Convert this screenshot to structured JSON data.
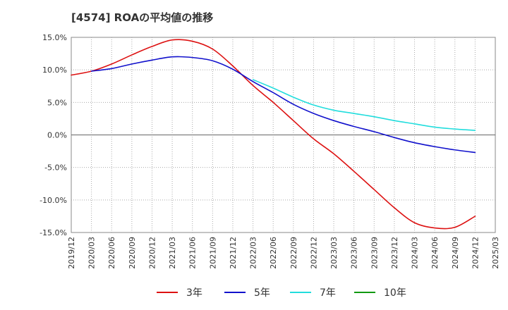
{
  "chart_data": {
    "type": "line",
    "title": "[4574]  ROAの平均値の推移",
    "xlabel": "",
    "ylabel": "",
    "ylim": [
      -15,
      15
    ],
    "ytick_values": [
      -15,
      -10,
      -5,
      0,
      5,
      10,
      15
    ],
    "ytick_labels": [
      "-15.0%",
      "-10.0%",
      "-5.0%",
      "0.0%",
      "5.0%",
      "10.0%",
      "15.0%"
    ],
    "x_categories": [
      "2019/12",
      "2020/03",
      "2020/06",
      "2020/09",
      "2020/12",
      "2021/03",
      "2021/06",
      "2021/09",
      "2021/12",
      "2022/03",
      "2022/06",
      "2022/09",
      "2022/12",
      "2023/03",
      "2023/06",
      "2023/09",
      "2023/12",
      "2024/03",
      "2024/06",
      "2024/09",
      "2024/12",
      "2025/03"
    ],
    "grid": true,
    "legend_position": "bottom",
    "series": [
      {
        "name": "3年",
        "color": "#dd1111",
        "values": [
          9.2,
          9.8,
          10.9,
          12.3,
          13.6,
          14.6,
          14.4,
          13.2,
          10.6,
          7.6,
          5.0,
          2.2,
          -0.6,
          -2.9,
          -5.6,
          -8.4,
          -11.2,
          -13.5,
          -14.3,
          -14.2,
          -12.5,
          null
        ]
      },
      {
        "name": "5年",
        "color": "#1111cc",
        "values": [
          null,
          9.8,
          10.2,
          10.9,
          11.5,
          12.0,
          11.9,
          11.4,
          10.1,
          8.2,
          6.5,
          4.7,
          3.3,
          2.2,
          1.3,
          0.5,
          -0.4,
          -1.2,
          -1.8,
          -2.3,
          -2.7,
          null
        ]
      },
      {
        "name": "7年",
        "color": "#22dddd",
        "values": [
          null,
          null,
          null,
          null,
          null,
          null,
          null,
          null,
          null,
          8.5,
          7.2,
          5.8,
          4.6,
          3.8,
          3.3,
          2.8,
          2.2,
          1.7,
          1.2,
          0.9,
          0.7,
          null
        ]
      },
      {
        "name": "10年",
        "color": "#119911",
        "values": [
          null,
          null,
          null,
          null,
          null,
          null,
          null,
          null,
          null,
          null,
          null,
          null,
          null,
          null,
          null,
          null,
          null,
          null,
          null,
          null,
          null,
          null
        ]
      }
    ]
  }
}
